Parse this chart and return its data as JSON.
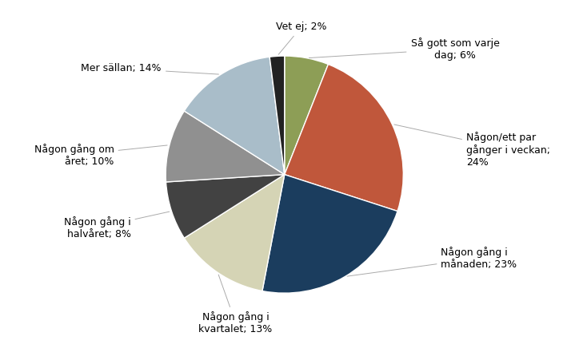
{
  "slices": [
    {
      "label": "Så gott som varje\ndag; 6%",
      "value": 6,
      "color": "#8d9e56"
    },
    {
      "label": "Någon/ett par\ngånger i veckan;\n24%",
      "value": 24,
      "color": "#c0573b"
    },
    {
      "label": "Någon gång i\nmånaden; 23%",
      "value": 23,
      "color": "#1b3d5e"
    },
    {
      "label": "Någon gång i\nkvartalet; 13%",
      "value": 13,
      "color": "#d5d4b5"
    },
    {
      "label": "Någon gång i\nhalvåret; 8%",
      "value": 8,
      "color": "#424242"
    },
    {
      "label": "Någon gång om\nåret; 10%",
      "value": 10,
      "color": "#909090"
    },
    {
      "label": "Mer sällan; 14%",
      "value": 14,
      "color": "#a9bdc9"
    },
    {
      "label": "Vet ej; 2%",
      "value": 2,
      "color": "#222222"
    }
  ],
  "figsize": [
    7.29,
    4.46
  ],
  "dpi": 100,
  "background_color": "#ffffff",
  "label_fontsize": 9,
  "startangle": 90
}
